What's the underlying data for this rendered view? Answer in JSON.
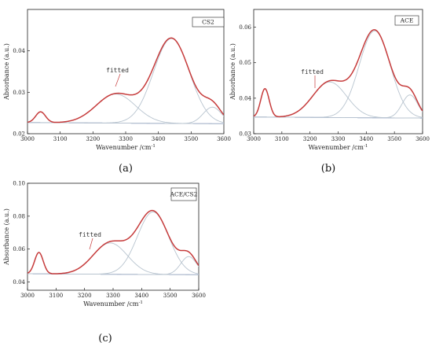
{
  "chart_data": [
    {
      "type": "line",
      "panel_label": "(a)",
      "legend": "CS2",
      "xlabel": "Wavenumber /cm",
      "xlabel_sup": "-1",
      "ylabel": "Absorbance (a.u.)",
      "annotation": "fitted",
      "xlim": [
        3000,
        3600
      ],
      "ylim": [
        0.02,
        0.05
      ],
      "xticks": [
        3000,
        3100,
        3200,
        3300,
        3400,
        3500,
        3600
      ],
      "yticks": [
        0.02,
        0.03,
        0.04
      ],
      "ytick_labels": [
        "0.02",
        "0.03",
        "0.04"
      ],
      "baseline": {
        "a": 0.0227,
        "b": -5e-07
      },
      "peaks": [
        {
          "center": 3040,
          "height": 0.0026,
          "width": 15
        },
        {
          "center": 3270,
          "height": 0.007,
          "width": 60
        },
        {
          "center": 3440,
          "height": 0.0205,
          "width": 55
        },
        {
          "center": 3565,
          "height": 0.004,
          "width": 28
        }
      ],
      "colors": {
        "envelope": "#c63b3b",
        "component": "#b8c4cf",
        "baseline": "#5a67c9"
      }
    },
    {
      "type": "line",
      "panel_label": "(b)",
      "legend": "ACE",
      "xlabel": "Wavenumber /cm",
      "xlabel_sup": "-1",
      "ylabel": "Absorbance (a.u.)",
      "annotation": "fitted",
      "xlim": [
        3000,
        3600
      ],
      "ylim": [
        0.03,
        0.065
      ],
      "xticks": [
        3000,
        3100,
        3200,
        3300,
        3400,
        3500,
        3600
      ],
      "yticks": [
        0.03,
        0.04,
        0.05,
        0.06
      ],
      "ytick_labels": [
        "0.03",
        "0.04",
        "0.05",
        "0.06"
      ],
      "baseline": {
        "a": 0.0347,
        "b": -5e-07
      },
      "peaks": [
        {
          "center": 3040,
          "height": 0.008,
          "width": 15
        },
        {
          "center": 3270,
          "height": 0.01,
          "width": 60
        },
        {
          "center": 3430,
          "height": 0.0245,
          "width": 55
        },
        {
          "center": 3555,
          "height": 0.0065,
          "width": 28
        }
      ],
      "colors": {
        "envelope": "#c63b3b",
        "component": "#b8c4cf",
        "baseline": "#5a67c9"
      }
    },
    {
      "type": "line",
      "panel_label": "(c)",
      "legend": "ACE/CS2",
      "xlabel": "Wavenumber /cm",
      "xlabel_sup": "-1",
      "ylabel": "Absorbance (a.u.)",
      "annotation": "fitted",
      "xlim": [
        3000,
        3600
      ],
      "ylim": [
        0.035,
        0.1
      ],
      "xticks": [
        3000,
        3100,
        3200,
        3300,
        3400,
        3500,
        3600
      ],
      "yticks": [
        0.04,
        0.06,
        0.08,
        0.1
      ],
      "ytick_labels": [
        "0.04",
        "0.06",
        "0.08",
        "0.10"
      ],
      "baseline": {
        "a": 0.045,
        "b": -1e-06
      },
      "peaks": [
        {
          "center": 3040,
          "height": 0.013,
          "width": 15
        },
        {
          "center": 3290,
          "height": 0.019,
          "width": 60
        },
        {
          "center": 3440,
          "height": 0.038,
          "width": 55
        },
        {
          "center": 3565,
          "height": 0.011,
          "width": 28
        }
      ],
      "colors": {
        "envelope": "#c63b3b",
        "component": "#b8c4cf",
        "baseline": "#5a67c9"
      }
    }
  ]
}
